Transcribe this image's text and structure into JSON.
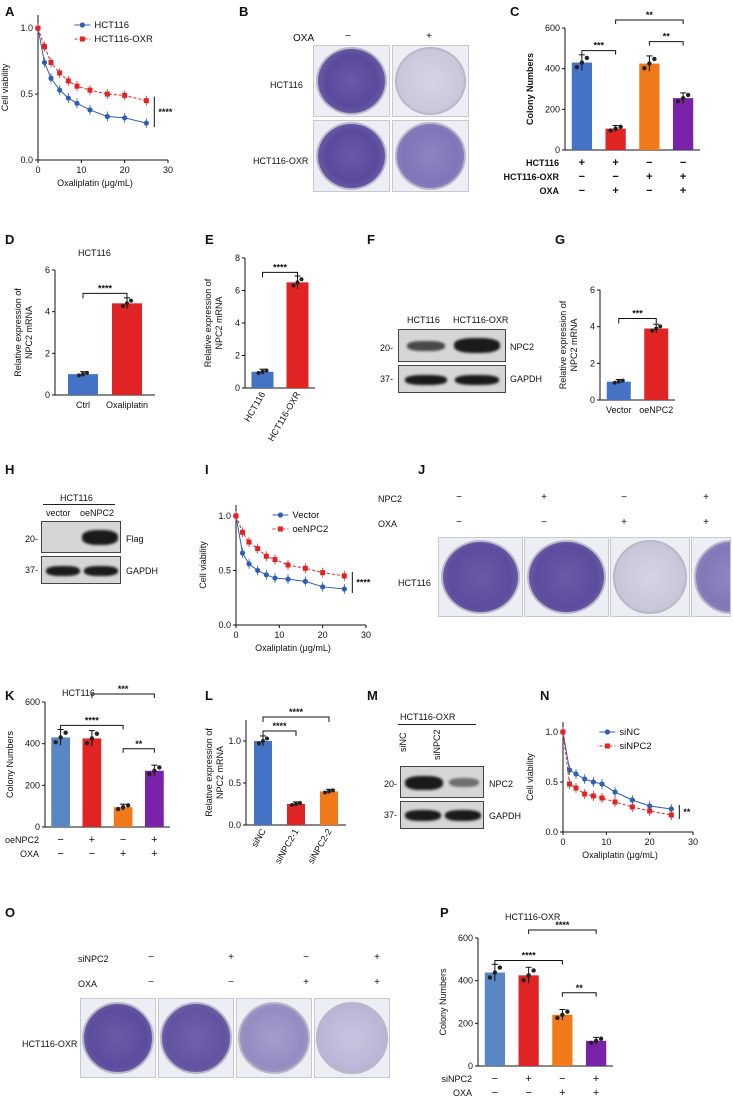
{
  "panels": {
    "A": "A",
    "B": "B",
    "C": "C",
    "D": "D",
    "E": "E",
    "F": "F",
    "G": "G",
    "H": "H",
    "I": "I",
    "J": "J",
    "K": "K",
    "L": "L",
    "M": "M",
    "N": "N",
    "O": "O",
    "P": "P"
  },
  "colors": {
    "blue": "#2f5fb3",
    "red": "#e02424",
    "orange": "#f07a1a",
    "purple": "#7a22a8",
    "steel": "#5b86c4",
    "lightblue": "#4472c4",
    "dishbg": "#d8dbe6",
    "dish_dense": "#5a4a9e"
  },
  "titles": {
    "D": "HCT116",
    "K": "HCT116",
    "P": "HCT116-OXR"
  },
  "panelB": {
    "oxa_label": "OXA",
    "neg": "−",
    "pos": "+",
    "rows": [
      "HCT116",
      "HCT116-OXR"
    ]
  },
  "panelF": {
    "lanes": [
      "HCT116",
      "HCT116-OXR"
    ],
    "markers": [
      "20-",
      "37-"
    ],
    "bands": [
      "NPC2",
      "GAPDH"
    ]
  },
  "panelH": {
    "header": "HCT116",
    "lanes": [
      "vector",
      "oeNPC2"
    ],
    "markers": [
      "20-",
      "37-"
    ],
    "bands": [
      "Flag",
      "GAPDH"
    ]
  },
  "panelJ": {
    "row_labels": [
      "NPC2",
      "OXA"
    ],
    "npc2_signs": [
      "−",
      "+",
      "−",
      "+"
    ],
    "oxa_signs": [
      "−",
      "−",
      "+",
      "+"
    ],
    "cell_label": "HCT116"
  },
  "panelM": {
    "header": "HCT116-OXR",
    "lanes": [
      "siNC",
      "siNPC2"
    ],
    "markers": [
      "20-",
      "37-"
    ],
    "bands": [
      "NPC2",
      "GAPDH"
    ]
  },
  "panelO": {
    "row_labels": [
      "siNPC2",
      "OXA"
    ],
    "sinpc2_signs": [
      "−",
      "+",
      "−",
      "+"
    ],
    "oxa_signs": [
      "−",
      "−",
      "+",
      "+"
    ],
    "cell_label": "HCT116-OXR"
  },
  "chart_data": [
    {
      "id": "A",
      "type": "line",
      "xlabel": "Oxaliplatin (μg/mL)",
      "ylabel": "Cell viability",
      "xlim": [
        0,
        30
      ],
      "ylim": [
        0,
        1.1
      ],
      "xticks": [
        0,
        10,
        20,
        30
      ],
      "yticks": [
        0.0,
        0.5,
        1.0
      ],
      "significance": "****",
      "series": [
        {
          "name": "HCT116",
          "x": [
            0,
            1.5,
            3,
            5,
            7,
            9,
            12,
            16,
            20,
            25
          ],
          "y": [
            1.0,
            0.74,
            0.62,
            0.53,
            0.47,
            0.43,
            0.38,
            0.33,
            0.32,
            0.28
          ]
        },
        {
          "name": "HCT116-OXR",
          "x": [
            0,
            1.5,
            3,
            5,
            7,
            9,
            12,
            16,
            20,
            25
          ],
          "y": [
            1.0,
            0.86,
            0.74,
            0.66,
            0.6,
            0.56,
            0.53,
            0.5,
            0.49,
            0.45
          ]
        }
      ]
    },
    {
      "id": "C",
      "type": "bar",
      "ylabel": "Colony Numbers",
      "ylim": [
        0,
        600
      ],
      "yticks": [
        0,
        200,
        400,
        600
      ],
      "values": [
        430,
        105,
        425,
        255
      ],
      "row_labels": [
        "HCT116",
        "HCT116-OXR",
        "OXA"
      ],
      "rows": [
        [
          "+",
          "+",
          "−",
          "−"
        ],
        [
          "−",
          "−",
          "+",
          "+"
        ],
        [
          "−",
          "+",
          "−",
          "+"
        ]
      ],
      "sig": [
        {
          "a": 0,
          "b": 1,
          "t": "***"
        },
        {
          "a": 2,
          "b": 3,
          "t": "**"
        },
        {
          "a": 1,
          "b": 3,
          "t": "**"
        }
      ]
    },
    {
      "id": "D",
      "type": "bar",
      "ylabel": "Relative expression of\nNPC2 mRNA",
      "ylim": [
        0,
        6
      ],
      "yticks": [
        0,
        2,
        4,
        6
      ],
      "categories": [
        "Ctrl",
        "Oxaliplatin"
      ],
      "values": [
        1.0,
        4.4
      ],
      "sig": [
        {
          "a": 0,
          "b": 1,
          "t": "****"
        }
      ]
    },
    {
      "id": "E",
      "type": "bar",
      "ylabel": "Relative expression of\nNPC2 mRNA",
      "ylim": [
        0,
        8
      ],
      "yticks": [
        0,
        2,
        4,
        6,
        8
      ],
      "categories": [
        "HCT116",
        "HCT116-OXR"
      ],
      "values": [
        1.0,
        6.5
      ],
      "sig": [
        {
          "a": 0,
          "b": 1,
          "t": "****"
        }
      ]
    },
    {
      "id": "G",
      "type": "bar",
      "ylabel": "Relative expression of\nNPC2 mRNA",
      "ylim": [
        0,
        6
      ],
      "yticks": [
        0,
        2,
        4,
        6
      ],
      "categories": [
        "Vector",
        "oeNPC2"
      ],
      "values": [
        1.0,
        3.9
      ],
      "sig": [
        {
          "a": 0,
          "b": 1,
          "t": "***"
        }
      ]
    },
    {
      "id": "I",
      "type": "line",
      "xlabel": "Oxaliplatin (μg/mL)",
      "ylabel": "Cell viability",
      "xlim": [
        0,
        30
      ],
      "ylim": [
        0,
        1.1
      ],
      "xticks": [
        0,
        10,
        20,
        30
      ],
      "yticks": [
        0.0,
        0.5,
        1.0
      ],
      "significance": "****",
      "series": [
        {
          "name": "Vector",
          "x": [
            0,
            1.5,
            3,
            5,
            7,
            9,
            12,
            16,
            20,
            25
          ],
          "y": [
            1.0,
            0.66,
            0.56,
            0.5,
            0.46,
            0.43,
            0.42,
            0.4,
            0.35,
            0.33
          ]
        },
        {
          "name": "oeNPC2",
          "x": [
            0,
            1.5,
            3,
            5,
            7,
            9,
            12,
            16,
            20,
            25
          ],
          "y": [
            1.0,
            0.85,
            0.76,
            0.7,
            0.63,
            0.6,
            0.55,
            0.52,
            0.48,
            0.45
          ]
        }
      ]
    },
    {
      "id": "K",
      "type": "bar",
      "ylabel": "Colony Numbers",
      "ylim": [
        0,
        600
      ],
      "yticks": [
        0,
        200,
        400,
        600
      ],
      "values": [
        430,
        425,
        95,
        270
      ],
      "row_labels": [
        "oeNPC2",
        "OXA"
      ],
      "rows": [
        [
          "−",
          "+",
          "−",
          "+"
        ],
        [
          "−",
          "−",
          "+",
          "+"
        ]
      ],
      "sig": [
        {
          "a": 0,
          "b": 2,
          "t": "****"
        },
        {
          "a": 2,
          "b": 3,
          "t": "**"
        },
        {
          "a": 1,
          "b": 3,
          "t": "***"
        }
      ]
    },
    {
      "id": "L",
      "type": "bar",
      "ylabel": "Relative expression of\nNPC2 mRNA",
      "ylim": [
        0,
        1.25
      ],
      "yticks": [
        0.0,
        0.5,
        1.0
      ],
      "categories": [
        "siNC",
        "siNPC2-1",
        "siNPC2-2"
      ],
      "values": [
        1.0,
        0.25,
        0.4
      ],
      "sig": [
        {
          "a": 0,
          "b": 1,
          "t": "****"
        },
        {
          "a": 0,
          "b": 2,
          "t": "****"
        }
      ]
    },
    {
      "id": "N",
      "type": "line",
      "xlabel": "Oxaliplatin  (μg/mL)",
      "ylabel": "Cell viability",
      "xlim": [
        0,
        30
      ],
      "ylim": [
        0,
        1.1
      ],
      "xticks": [
        0,
        10,
        20,
        30
      ],
      "yticks": [
        0.0,
        0.5,
        1.0
      ],
      "significance": "**",
      "series": [
        {
          "name": "siNC",
          "x": [
            0,
            1.5,
            3,
            5,
            7,
            9,
            12,
            16,
            20,
            25
          ],
          "y": [
            1.0,
            0.62,
            0.58,
            0.53,
            0.5,
            0.48,
            0.4,
            0.32,
            0.26,
            0.23
          ]
        },
        {
          "name": "siNPC2",
          "x": [
            0,
            1.5,
            3,
            5,
            7,
            9,
            12,
            16,
            20,
            25
          ],
          "y": [
            1.0,
            0.48,
            0.44,
            0.38,
            0.36,
            0.34,
            0.3,
            0.25,
            0.21,
            0.17
          ]
        }
      ]
    },
    {
      "id": "P",
      "type": "bar",
      "ylabel": "Colony Numbers",
      "ylim": [
        0,
        600
      ],
      "yticks": [
        0,
        200,
        400,
        600
      ],
      "values": [
        438,
        425,
        240,
        118
      ],
      "row_labels": [
        "siNPC2",
        "OXA"
      ],
      "rows": [
        [
          "−",
          "+",
          "−",
          "+"
        ],
        [
          "−",
          "−",
          "+",
          "+"
        ]
      ],
      "sig": [
        {
          "a": 0,
          "b": 2,
          "t": "****"
        },
        {
          "a": 2,
          "b": 3,
          "t": "**"
        },
        {
          "a": 1,
          "b": 3,
          "t": "****"
        }
      ]
    }
  ]
}
